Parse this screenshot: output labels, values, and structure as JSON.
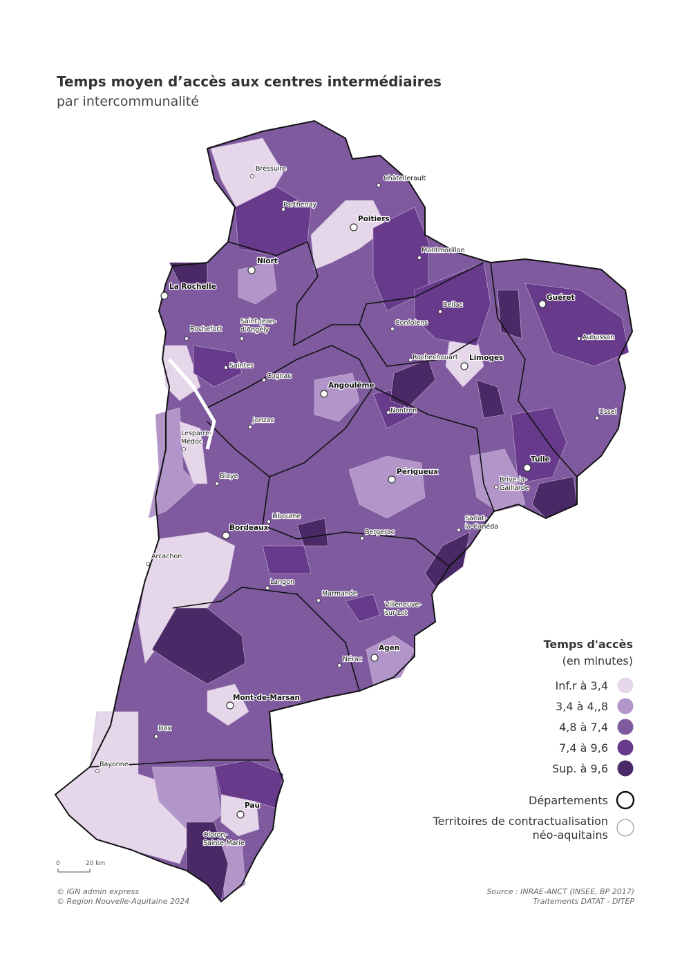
{
  "header": {
    "title": "Temps moyen d’accès aux centres intermédiaires",
    "subtitle": "par intercommunalité"
  },
  "cities": [
    {
      "lines": [
        "Bressuire"
      ]
    },
    {
      "lines": [
        "Châtellerault"
      ]
    },
    {
      "lines": [
        "Parthenay"
      ]
    },
    {
      "lines": [
        "Poitiers"
      ],
      "prefecture": true
    },
    {
      "lines": [
        "Montmorillon"
      ]
    },
    {
      "lines": [
        "Niort"
      ],
      "prefecture": true
    },
    {
      "lines": [
        "La Rochelle"
      ],
      "prefecture": true
    },
    {
      "lines": [
        "Saint-Jean-",
        "d'Angély"
      ]
    },
    {
      "lines": [
        "Rochefort"
      ]
    },
    {
      "lines": [
        "Saintes"
      ]
    },
    {
      "lines": [
        "Cognac"
      ]
    },
    {
      "lines": [
        "Confolens"
      ]
    },
    {
      "lines": [
        "Bellac"
      ]
    },
    {
      "lines": [
        "Guéret"
      ],
      "prefecture": true
    },
    {
      "lines": [
        "Aubusson"
      ]
    },
    {
      "lines": [
        "Rochechouart"
      ]
    },
    {
      "lines": [
        "Limoges"
      ],
      "prefecture": true
    },
    {
      "lines": [
        "Angoulême"
      ],
      "prefecture": true
    },
    {
      "lines": [
        "Nontron"
      ]
    },
    {
      "lines": [
        "Ussel"
      ]
    },
    {
      "lines": [
        "Jonzac"
      ]
    },
    {
      "lines": [
        "Lesparre-",
        "Médoc"
      ]
    },
    {
      "lines": [
        "Blaye"
      ]
    },
    {
      "lines": [
        "Tulle"
      ],
      "prefecture": true
    },
    {
      "lines": [
        "Périgueux"
      ],
      "prefecture": true
    },
    {
      "lines": [
        "Brive-la-",
        "Gaillarde"
      ]
    },
    {
      "lines": [
        "Libourne"
      ]
    },
    {
      "lines": [
        "Bordeaux"
      ],
      "prefecture": true
    },
    {
      "lines": [
        "Sarlat-",
        "la-Canéda"
      ]
    },
    {
      "lines": [
        "Bergerac"
      ]
    },
    {
      "lines": [
        "Arcachon"
      ]
    },
    {
      "lines": [
        "Langon"
      ]
    },
    {
      "lines": [
        "Marmande"
      ]
    },
    {
      "lines": [
        "Villeneuve-",
        "sur-Lot"
      ]
    },
    {
      "lines": [
        "Agen"
      ],
      "prefecture": true
    },
    {
      "lines": [
        "Nérac"
      ]
    },
    {
      "lines": [
        "Mont-de-Marsan"
      ],
      "prefecture": true
    },
    {
      "lines": [
        "Dax"
      ]
    },
    {
      "lines": [
        "Bayonne"
      ]
    },
    {
      "lines": [
        "Pau"
      ],
      "prefecture": true
    },
    {
      "lines": [
        "Oloron-",
        "Sainte-Marie"
      ]
    }
  ],
  "legend": {
    "title": "Temps d'accès",
    "subtitle": "(en minutes)",
    "items": [
      {
        "label": "Inf.r à 3,4",
        "color": "#e6d6ea"
      },
      {
        "label": "3,4 à 4,,8",
        "color": "#b396c9"
      },
      {
        "label": "4,8 à 7,4",
        "color": "#7f5a9f"
      },
      {
        "label": "7,4 à 9,6",
        "color": "#673a8c"
      },
      {
        "label": "Sup. à 9,6",
        "color": "#4a2967"
      }
    ],
    "departments": "Départements",
    "territories": [
      "Territoires de contractualisation",
      "néo-aquitains"
    ]
  },
  "scale": {
    "start": "0",
    "end": "20 km"
  },
  "credits": [
    "© IGN admin express",
    "© Region Nouvelle-Aquitaine 2024"
  ],
  "source": [
    "Source : INRAE-ANCT (INSEE, BP 2017)",
    "Traitements DATAT - DITEP"
  ]
}
